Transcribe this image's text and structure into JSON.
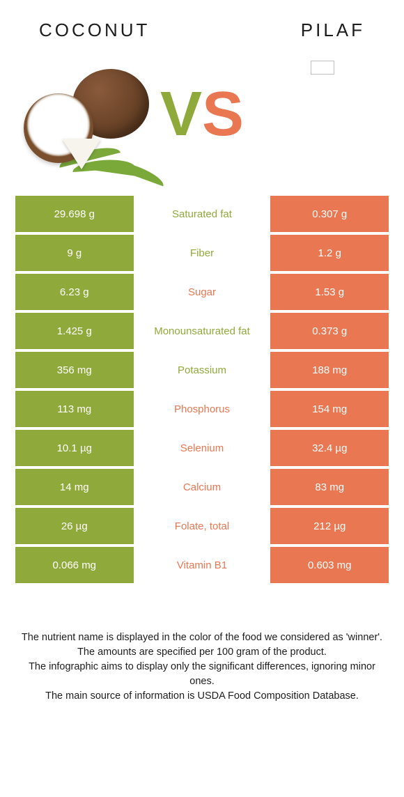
{
  "colors": {
    "left": "#8faa3a",
    "right": "#e87752",
    "vs_v": "#8faa3a",
    "vs_s": "#e87752",
    "leaf": "#7aa93a",
    "text": "#1d1d1d"
  },
  "header": {
    "left_title": "COCONUT",
    "right_title": "PILAF"
  },
  "vs": {
    "v": "V",
    "s": "S"
  },
  "rows": [
    {
      "left": "29.698 g",
      "label": "Saturated fat",
      "right": "0.307 g",
      "winner": "left"
    },
    {
      "left": "9 g",
      "label": "Fiber",
      "right": "1.2 g",
      "winner": "left"
    },
    {
      "left": "6.23 g",
      "label": "Sugar",
      "right": "1.53 g",
      "winner": "right"
    },
    {
      "left": "1.425 g",
      "label": "Monounsaturated fat",
      "right": "0.373 g",
      "winner": "left"
    },
    {
      "left": "356 mg",
      "label": "Potassium",
      "right": "188 mg",
      "winner": "left"
    },
    {
      "left": "113 mg",
      "label": "Phosphorus",
      "right": "154 mg",
      "winner": "right"
    },
    {
      "left": "10.1 µg",
      "label": "Selenium",
      "right": "32.4 µg",
      "winner": "right"
    },
    {
      "left": "14 mg",
      "label": "Calcium",
      "right": "83 mg",
      "winner": "right"
    },
    {
      "left": "26 µg",
      "label": "Folate, total",
      "right": "212 µg",
      "winner": "right"
    },
    {
      "left": "0.066 mg",
      "label": "Vitamin B1",
      "right": "0.603 mg",
      "winner": "right"
    }
  ],
  "footer": {
    "line1": "The nutrient name is displayed in the color of the food we considered as 'winner'.",
    "line2": "The amounts are specified per 100 gram of the product.",
    "line3": "The infographic aims to display only the significant differences, ignoring minor ones.",
    "line4": "The main source of information is USDA Food Composition Database."
  }
}
